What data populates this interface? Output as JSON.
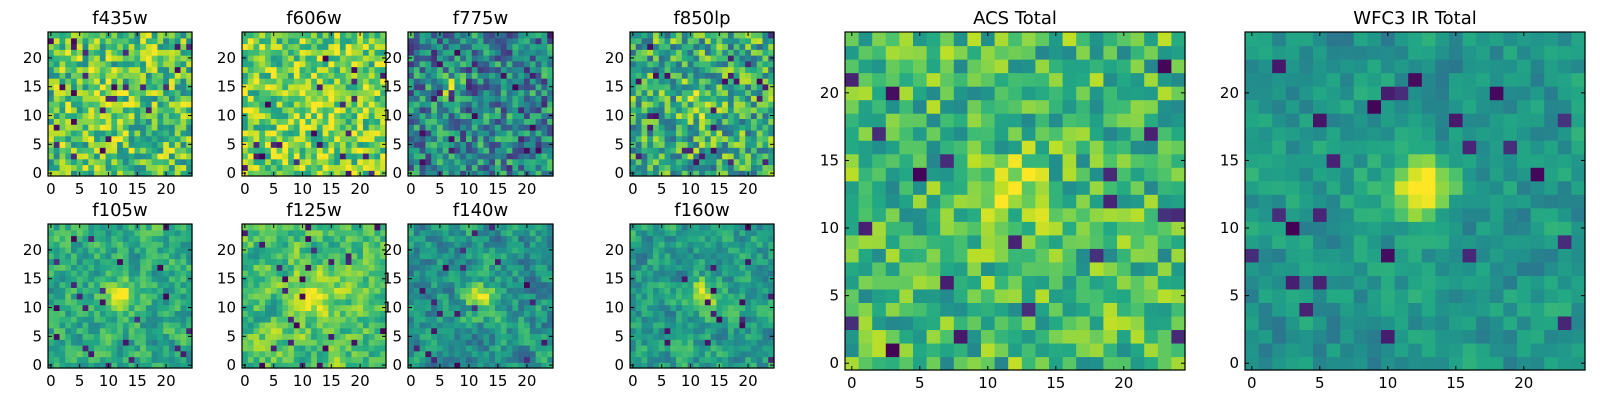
{
  "colormap": "viridis",
  "chart_data": [
    {
      "type": "heatmap",
      "title": "f435w",
      "xticks": [
        "0",
        "5",
        "10",
        "15",
        "20"
      ],
      "yticks": [
        "0",
        "5",
        "10",
        "15",
        "20"
      ],
      "xlim": [
        -0.5,
        24.5
      ],
      "ylim": [
        -0.5,
        24.5
      ],
      "grid_size": 25
    },
    {
      "type": "heatmap",
      "title": "f606w",
      "xticks": [
        "0",
        "5",
        "10",
        "15",
        "20"
      ],
      "yticks": [
        "0",
        "5",
        "10",
        "15",
        "20"
      ],
      "xlim": [
        -0.5,
        24.5
      ],
      "ylim": [
        -0.5,
        24.5
      ],
      "grid_size": 25
    },
    {
      "type": "heatmap",
      "title": "f775w",
      "xticks": [
        "0",
        "5",
        "10",
        "15",
        "20"
      ],
      "yticks": [
        "0",
        "5",
        "10",
        "15",
        "20"
      ],
      "xlim": [
        -0.5,
        24.5
      ],
      "ylim": [
        -0.5,
        24.5
      ],
      "grid_size": 25
    },
    {
      "type": "heatmap",
      "title": "f850lp",
      "xticks": [
        "0",
        "5",
        "10",
        "15",
        "20"
      ],
      "yticks": [
        "0",
        "5",
        "10",
        "15",
        "20"
      ],
      "xlim": [
        -0.5,
        24.5
      ],
      "ylim": [
        -0.5,
        24.5
      ],
      "grid_size": 25
    },
    {
      "type": "heatmap",
      "title": "f105w",
      "xticks": [
        "0",
        "5",
        "10",
        "15",
        "20"
      ],
      "yticks": [
        "0",
        "5",
        "10",
        "15",
        "20"
      ],
      "xlim": [
        -0.5,
        24.5
      ],
      "ylim": [
        -0.5,
        24.5
      ],
      "grid_size": 25
    },
    {
      "type": "heatmap",
      "title": "f125w",
      "xticks": [
        "0",
        "5",
        "10",
        "15",
        "20"
      ],
      "yticks": [
        "0",
        "5",
        "10",
        "15",
        "20"
      ],
      "xlim": [
        -0.5,
        24.5
      ],
      "ylim": [
        -0.5,
        24.5
      ],
      "grid_size": 25
    },
    {
      "type": "heatmap",
      "title": "f140w",
      "xticks": [
        "0",
        "5",
        "10",
        "15",
        "20"
      ],
      "yticks": [
        "0",
        "5",
        "10",
        "15",
        "20"
      ],
      "xlim": [
        -0.5,
        24.5
      ],
      "ylim": [
        -0.5,
        24.5
      ],
      "grid_size": 25
    },
    {
      "type": "heatmap",
      "title": "f160w",
      "xticks": [
        "0",
        "5",
        "10",
        "15",
        "20"
      ],
      "yticks": [
        "0",
        "5",
        "10",
        "15",
        "20"
      ],
      "xlim": [
        -0.5,
        24.5
      ],
      "ylim": [
        -0.5,
        24.5
      ],
      "grid_size": 25
    },
    {
      "type": "heatmap",
      "title": "ACS Total",
      "xticks": [
        "0",
        "5",
        "10",
        "15",
        "20"
      ],
      "yticks": [
        "0",
        "5",
        "10",
        "15",
        "20"
      ],
      "xlim": [
        -0.5,
        24.5
      ],
      "ylim": [
        -0.5,
        24.5
      ],
      "grid_size": 25
    },
    {
      "type": "heatmap",
      "title": "WFC3 IR Total",
      "xticks": [
        "0",
        "5",
        "10",
        "15",
        "20"
      ],
      "yticks": [
        "0",
        "5",
        "10",
        "15",
        "20"
      ],
      "xlim": [
        -0.5,
        24.5
      ],
      "ylim": [
        -0.5,
        24.5
      ],
      "grid_size": 25
    }
  ]
}
